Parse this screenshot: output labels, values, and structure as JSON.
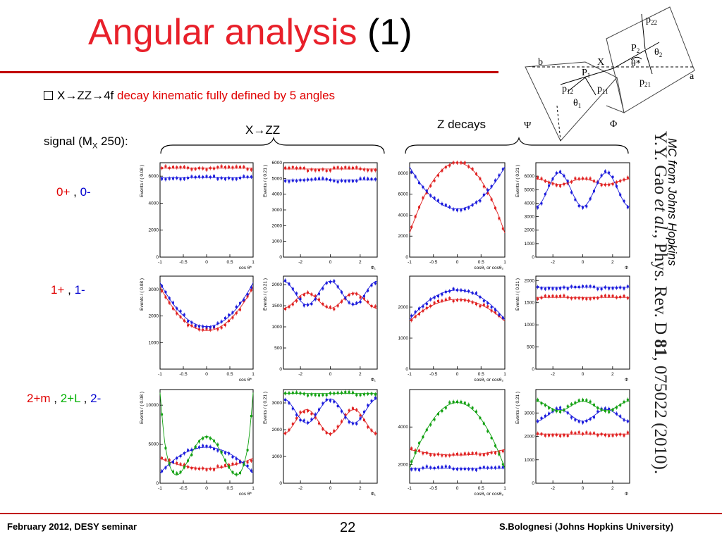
{
  "title": {
    "main": "Angular analysis",
    "suffix": " (1)"
  },
  "bullet": {
    "lead": "X→ZZ→4f ",
    "rest": "decay kinematic fully defined by 5 angles"
  },
  "signal": {
    "prefix": "signal (M",
    "sub": "X",
    "suffix": " 250):"
  },
  "group_labels": {
    "xzz": "X→ZZ",
    "zdecays": "Z decays"
  },
  "rows": [
    {
      "parts": [
        {
          "t": "0+",
          "c": "red"
        },
        {
          "t": " , ",
          "c": "black"
        },
        {
          "t": "0-",
          "c": "blue"
        }
      ]
    },
    {
      "parts": [
        {
          "t": "1+",
          "c": "red"
        },
        {
          "t": " , ",
          "c": "black"
        },
        {
          "t": "1-",
          "c": "blue"
        }
      ]
    },
    {
      "parts": [
        {
          "t": "2+m",
          "c": "red"
        },
        {
          "t": " , ",
          "c": "black"
        },
        {
          "t": "2+L",
          "c": "green"
        },
        {
          "t": " , ",
          "c": "black"
        },
        {
          "t": "2-",
          "c": "blue"
        }
      ]
    }
  ],
  "side_note": "MC from Johns Hopkins",
  "citation": {
    "a": "Y.Y. Gao ",
    "b": "et al.",
    "c": ", Phys. Rev. D ",
    "d": "81",
    "e": ", 075022 (2010)."
  },
  "footer": {
    "left": "February 2012, DESY seminar",
    "page": "22",
    "right": "S.Bolognesi (Johns Hopkins University)"
  },
  "diagram_labels": {
    "b": "b",
    "a": "a",
    "x": "X",
    "p1": "P",
    "p1s": "1",
    "p2": "P",
    "p2s": "2",
    "p11": "p",
    "p11s": "11",
    "p12": "p",
    "p12s": "12",
    "p21": "p",
    "p21s": "21",
    "p22": "p",
    "p22s": "22",
    "theta1": "θ",
    "theta1s": "1",
    "theta2": "θ",
    "theta2s": "2",
    "thetastar": "θ*",
    "psi": "Ψ",
    "phi": "Φ"
  },
  "colors": {
    "red": "#e02020",
    "blue": "#1a1adc",
    "green": "#10a010",
    "title_red": "#e8202a"
  },
  "chart_data": [
    {
      "type": "scatter",
      "xlabel": "cos θ*",
      "ylabel": "Events / ( 0.08 )",
      "xlim": [
        -1,
        1
      ],
      "ylim": [
        0,
        7000
      ],
      "xticks": [
        -1,
        -0.5,
        0,
        0.5,
        1
      ],
      "yticks": [
        0,
        2000,
        4000,
        6000
      ],
      "series": [
        {
          "color": "red",
          "fn": "const",
          "p": [
            6600
          ]
        },
        {
          "color": "blue",
          "fn": "const",
          "p": [
            5900
          ]
        }
      ]
    },
    {
      "type": "scatter",
      "xlabel": "Φ₁",
      "ylabel": "Events / ( 0.21 )",
      "xlim": [
        -3.14,
        3.14
      ],
      "ylim": [
        0,
        6000
      ],
      "xticks": [
        -2,
        0,
        2
      ],
      "yticks": [
        0,
        1000,
        2000,
        3000,
        4000,
        5000,
        6000
      ],
      "series": [
        {
          "color": "red",
          "fn": "const",
          "p": [
            5600
          ]
        },
        {
          "color": "blue",
          "fn": "const",
          "p": [
            4900
          ]
        }
      ]
    },
    {
      "type": "scatter",
      "xlabel": "cosθ₁ or cosθ₂",
      "ylabel": "",
      "xlim": [
        -1,
        1
      ],
      "ylim": [
        0,
        9000
      ],
      "xticks": [
        -1,
        -0.5,
        0,
        0.5,
        1
      ],
      "yticks": [
        0,
        2000,
        4000,
        6000,
        8000
      ],
      "series": [
        {
          "color": "red",
          "fn": "quad",
          "p": [
            9000,
            -6700
          ]
        },
        {
          "color": "blue",
          "fn": "quad",
          "p": [
            4600,
            4000
          ]
        }
      ]
    },
    {
      "type": "scatter",
      "xlabel": "Φ",
      "ylabel": "Events / ( 0.21 )",
      "xlim": [
        -3.14,
        3.14
      ],
      "ylim": [
        0,
        7000
      ],
      "xticks": [
        -2,
        0,
        2
      ],
      "yticks": [
        0,
        1000,
        2000,
        3000,
        4000,
        5000,
        6000
      ],
      "series": [
        {
          "color": "red",
          "fn": "cos2",
          "p": [
            5600,
            200
          ]
        },
        {
          "color": "blue",
          "fn": "cos2",
          "p": [
            5000,
            -1250
          ]
        }
      ]
    },
    {
      "type": "scatter",
      "xlabel": "cos θ*",
      "ylabel": "Events / ( 0.08 )",
      "xlim": [
        -1,
        1
      ],
      "ylim": [
        0,
        3500
      ],
      "xticks": [
        -1,
        -0.5,
        0,
        0.5,
        1
      ],
      "yticks": [
        1000,
        2000,
        3000
      ],
      "series": [
        {
          "color": "red",
          "fn": "quad",
          "p": [
            1450,
            1650
          ]
        },
        {
          "color": "blue",
          "fn": "quad",
          "p": [
            1600,
            1650
          ]
        }
      ]
    },
    {
      "type": "scatter",
      "xlabel": "Φ₁",
      "ylabel": "Events / ( 0.21 )",
      "xlim": [
        -3.14,
        3.14
      ],
      "ylim": [
        0,
        2200
      ],
      "xticks": [
        -2,
        0,
        2
      ],
      "yticks": [
        0,
        500,
        1000,
        1500,
        2000
      ],
      "series": [
        {
          "color": "red",
          "fn": "cos2",
          "p": [
            1620,
            -180
          ]
        },
        {
          "color": "blue",
          "fn": "cos2",
          "p": [
            1800,
            280
          ]
        }
      ]
    },
    {
      "type": "scatter",
      "xlabel": "cosθ₁ or cosθ₂",
      "ylabel": "",
      "xlim": [
        -1,
        1
      ],
      "ylim": [
        0,
        3000
      ],
      "xticks": [
        -1,
        -0.5,
        0,
        0.5,
        1
      ],
      "yticks": [
        0,
        1000,
        2000
      ],
      "series": [
        {
          "color": "red",
          "fn": "quad",
          "p": [
            2250,
            -700
          ]
        },
        {
          "color": "blue",
          "fn": "quad",
          "p": [
            2550,
            -950
          ]
        }
      ]
    },
    {
      "type": "scatter",
      "xlabel": "Φ",
      "ylabel": "Events / ( 0.21 )",
      "xlim": [
        -3.14,
        3.14
      ],
      "ylim": [
        0,
        2100
      ],
      "xticks": [
        -2,
        0,
        2
      ],
      "yticks": [
        0,
        500,
        1000,
        1500,
        2000
      ],
      "series": [
        {
          "color": "red",
          "fn": "const",
          "p": [
            1620
          ]
        },
        {
          "color": "blue",
          "fn": "const",
          "p": [
            1850
          ]
        }
      ]
    },
    {
      "type": "scatter",
      "xlabel": "cos θ*",
      "ylabel": "Events / ( 0.08 )",
      "xlim": [
        -1,
        1
      ],
      "ylim": [
        0,
        12000
      ],
      "xticks": [
        -1,
        -0.5,
        0,
        0.5,
        1
      ],
      "yticks": [
        0,
        5000,
        10000
      ],
      "series": [
        {
          "color": "red",
          "fn": "quad",
          "p": [
            1900,
            1300
          ]
        },
        {
          "color": "blue",
          "fn": "quad",
          "p": [
            4600,
            -3300
          ]
        },
        {
          "color": "green",
          "fn": "green4",
          "p": []
        }
      ]
    },
    {
      "type": "scatter",
      "xlabel": "Φ₁",
      "ylabel": "Events / ( 0.21 )",
      "xlim": [
        -3.14,
        3.14
      ],
      "ylim": [
        0,
        3500
      ],
      "xticks": [
        -2,
        0,
        2
      ],
      "yticks": [
        0,
        1000,
        2000,
        3000
      ],
      "series": [
        {
          "color": "red",
          "fn": "cos2",
          "p": [
            2300,
            -450
          ]
        },
        {
          "color": "blue",
          "fn": "cos2",
          "p": [
            2700,
            450
          ]
        },
        {
          "color": "green",
          "fn": "const",
          "p": [
            3350
          ]
        }
      ]
    },
    {
      "type": "scatter",
      "xlabel": "cosθ₁ or cosθ₂",
      "ylabel": "",
      "xlim": [
        -1,
        1
      ],
      "ylim": [
        1000,
        6000
      ],
      "xticks": [
        -1,
        -0.5,
        0,
        0.5,
        1
      ],
      "yticks": [
        2000,
        4000
      ],
      "series": [
        {
          "color": "red",
          "fn": "quad",
          "p": [
            2500,
            300
          ]
        },
        {
          "color": "blue",
          "fn": "const",
          "p": [
            1800
          ]
        },
        {
          "color": "green",
          "fn": "quad",
          "p": [
            5300,
            -3500
          ]
        }
      ]
    },
    {
      "type": "scatter",
      "xlabel": "Φ",
      "ylabel": "Events / ( 0.21 )",
      "xlim": [
        -3.14,
        3.14
      ],
      "ylim": [
        0,
        4000
      ],
      "xticks": [
        -2,
        0,
        2
      ],
      "yticks": [
        0,
        1000,
        2000,
        3000
      ],
      "series": [
        {
          "color": "red",
          "fn": "const",
          "p": [
            2100
          ]
        },
        {
          "color": "blue",
          "fn": "cos2",
          "p": [
            2900,
            -250
          ]
        },
        {
          "color": "green",
          "fn": "cos2",
          "p": [
            3300,
            200
          ]
        }
      ]
    }
  ]
}
